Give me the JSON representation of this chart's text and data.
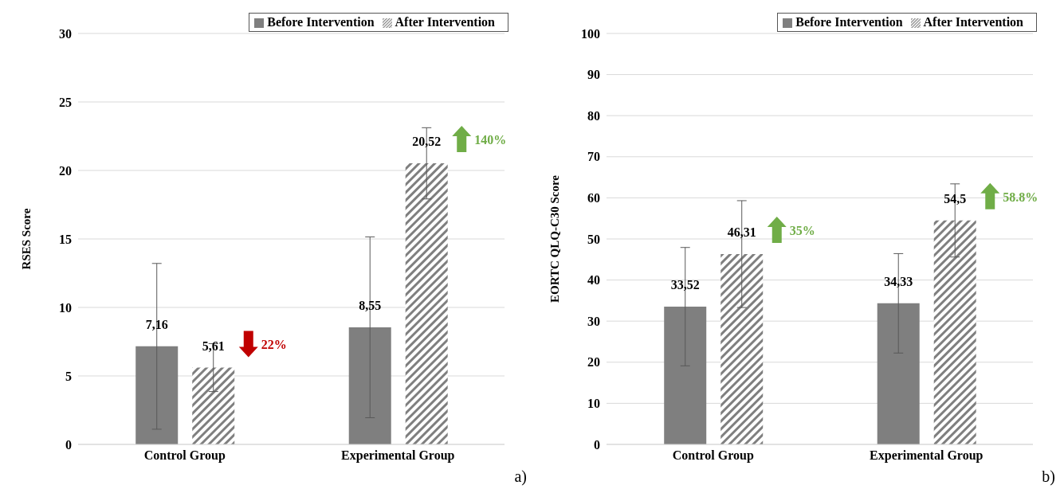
{
  "chart_data": [
    {
      "type": "bar",
      "ylabel": "RSES Score",
      "categories": [
        "Control Group",
        "Experimental Group"
      ],
      "series": [
        {
          "name": "Before Intervention",
          "color": "#7f7f7f",
          "values": [
            7.16,
            8.55
          ],
          "errors": [
            6.05,
            6.6
          ],
          "value_labels": [
            "7,16",
            "8,55"
          ]
        },
        {
          "name": "After Intervention",
          "color": "#7f7f7f",
          "values": [
            5.61,
            20.52
          ],
          "errors": [
            1.75,
            2.6
          ],
          "value_labels": [
            "5,61",
            "20,52"
          ]
        }
      ],
      "ylim": [
        0,
        30
      ],
      "yticks": [
        0,
        5,
        10,
        15,
        20,
        25,
        30
      ],
      "grid": "y",
      "legend": "top right",
      "annotations": [
        "22%",
        "140%",
        "a)"
      ]
    },
    {
      "type": "bar",
      "ylabel": "EORTC QLQ-C30 Score",
      "categories": [
        "Control Group",
        "Experimental Group"
      ],
      "series": [
        {
          "name": "Before Intervention",
          "color": "#7f7f7f",
          "values": [
            33.52,
            34.33
          ],
          "errors": [
            14.4,
            12.1
          ],
          "value_labels": [
            "33,52",
            "34,33"
          ]
        },
        {
          "name": "After Intervention",
          "color": "#7f7f7f",
          "values": [
            46.31,
            54.5
          ],
          "errors": [
            13,
            8.9
          ],
          "value_labels": [
            "46,31",
            "54,5"
          ]
        }
      ],
      "ylim": [
        0,
        100
      ],
      "yticks": [
        0,
        10,
        20,
        30,
        40,
        50,
        60,
        70,
        80,
        90,
        100
      ],
      "grid": "y",
      "legend": "top right",
      "annotations": [
        "35%",
        "58.8%",
        "b)"
      ]
    }
  ]
}
